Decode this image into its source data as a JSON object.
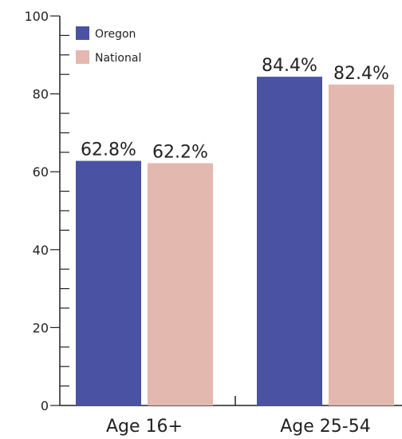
{
  "chart_data": {
    "type": "bar",
    "categories": [
      "Age 16+",
      "Age 25-54"
    ],
    "series": [
      {
        "name": "Oregon",
        "values": [
          62.8,
          84.4
        ],
        "labels": [
          "62.8%",
          "84.4%"
        ],
        "color": "#4a52a3"
      },
      {
        "name": "National",
        "values": [
          62.2,
          82.4
        ],
        "labels": [
          "62.2%",
          "82.4%"
        ],
        "color": "#e3b8af"
      }
    ],
    "ylim": [
      0,
      100
    ],
    "yticks": [
      0,
      20,
      40,
      60,
      80,
      100
    ],
    "ytick_labels": [
      "0",
      "20",
      "40",
      "60",
      "80",
      "100"
    ],
    "grid": false,
    "legend_position": "top-left"
  }
}
